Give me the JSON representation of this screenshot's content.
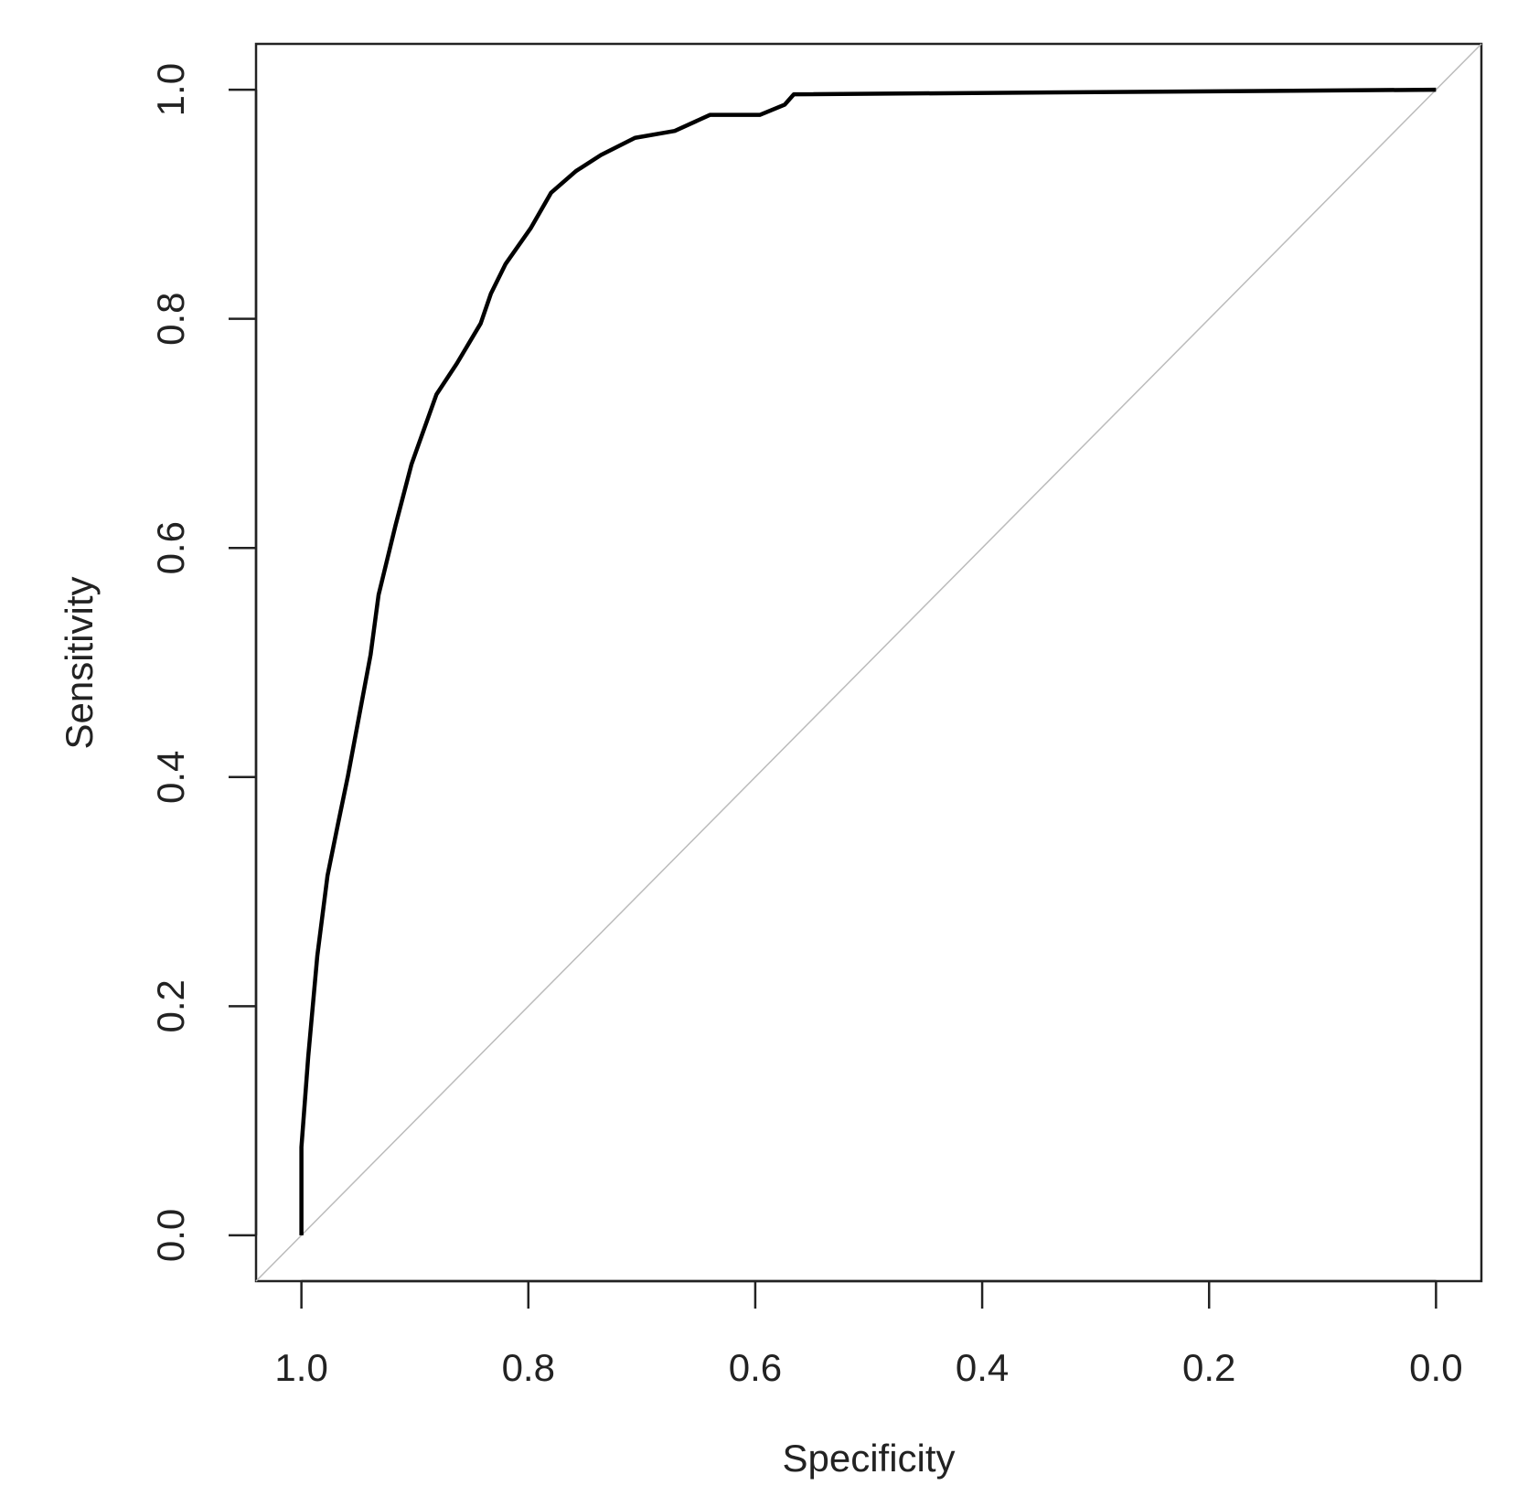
{
  "chart_data": {
    "type": "line",
    "x_label": "Specificity",
    "y_label": "Sensitivity",
    "x": [
      1.0,
      1.0,
      0.994,
      0.986,
      0.977,
      0.968,
      0.959,
      0.949,
      0.939,
      0.932,
      0.917,
      0.903,
      0.881,
      0.863,
      0.842,
      0.833,
      0.82,
      0.798,
      0.78,
      0.758,
      0.736,
      0.706,
      0.671,
      0.64,
      0.596,
      0.574,
      0.566,
      0.0
    ],
    "values": [
      0.0,
      0.077,
      0.156,
      0.244,
      0.314,
      0.358,
      0.401,
      0.454,
      0.507,
      0.559,
      0.62,
      0.673,
      0.734,
      0.761,
      0.796,
      0.822,
      0.848,
      0.879,
      0.91,
      0.929,
      0.943,
      0.958,
      0.964,
      0.978,
      0.978,
      0.987,
      0.996,
      1.0
    ],
    "color": "#000000",
    "xlim": [
      1.04,
      -0.04
    ],
    "ylim": [
      -0.04,
      1.04
    ],
    "xticks": [
      {
        "value": 1,
        "label": "1.0"
      },
      0.8,
      0.6,
      0.4,
      0.2,
      {
        "value": 0,
        "label": "0.0"
      }
    ],
    "yticks": [
      {
        "value": 0,
        "label": "0.0"
      },
      0.2,
      0.4,
      0.6,
      0.8,
      {
        "value": 1,
        "label": "1.0"
      }
    ]
  }
}
